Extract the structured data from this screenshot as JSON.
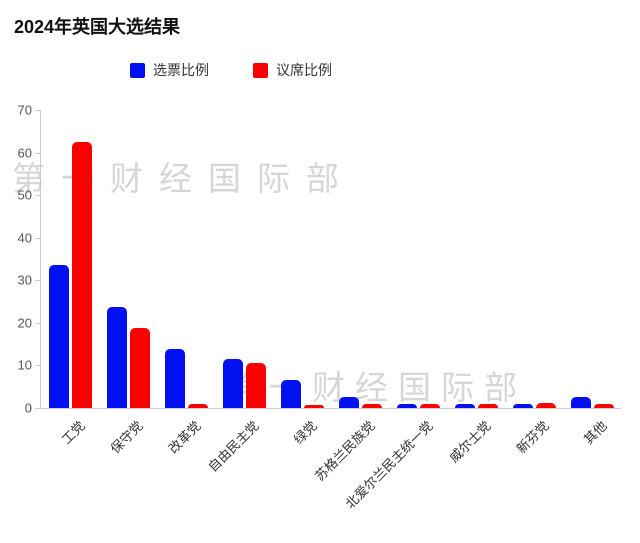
{
  "title": "2024年英国大选结果",
  "watermark": {
    "text": "第一财经国际部"
  },
  "accent_colors": {
    "votes_blue": "#0010f0",
    "seats_red": "#fa0000",
    "axis_gray": "#cccccc"
  },
  "chart_data": {
    "type": "bar",
    "title": "2024年英国大选结果",
    "categories": [
      "工党",
      "保守党",
      "改革党",
      "自由民主党",
      "绿党",
      "苏格兰民族党",
      "北爱尔兰民主统一党",
      "威尔士党",
      "新芬党",
      "其他"
    ],
    "series": [
      {
        "name": "选票比例",
        "color": "#0010f0",
        "values": [
          33.7,
          23.7,
          13.8,
          11.5,
          6.7,
          2.6,
          1.0,
          1.0,
          0.9,
          2.6
        ]
      },
      {
        "name": "议席比例",
        "color": "#fa0000",
        "values": [
          62.5,
          18.8,
          1.0,
          10.6,
          0.8,
          1.0,
          1.0,
          1.0,
          1.1,
          1.0
        ]
      }
    ],
    "xlabel": "",
    "ylabel": "",
    "ylim": [
      0,
      70
    ],
    "yticks": [
      0,
      10,
      20,
      30,
      40,
      50,
      60,
      70
    ],
    "grid": false,
    "legend_position": "top"
  }
}
